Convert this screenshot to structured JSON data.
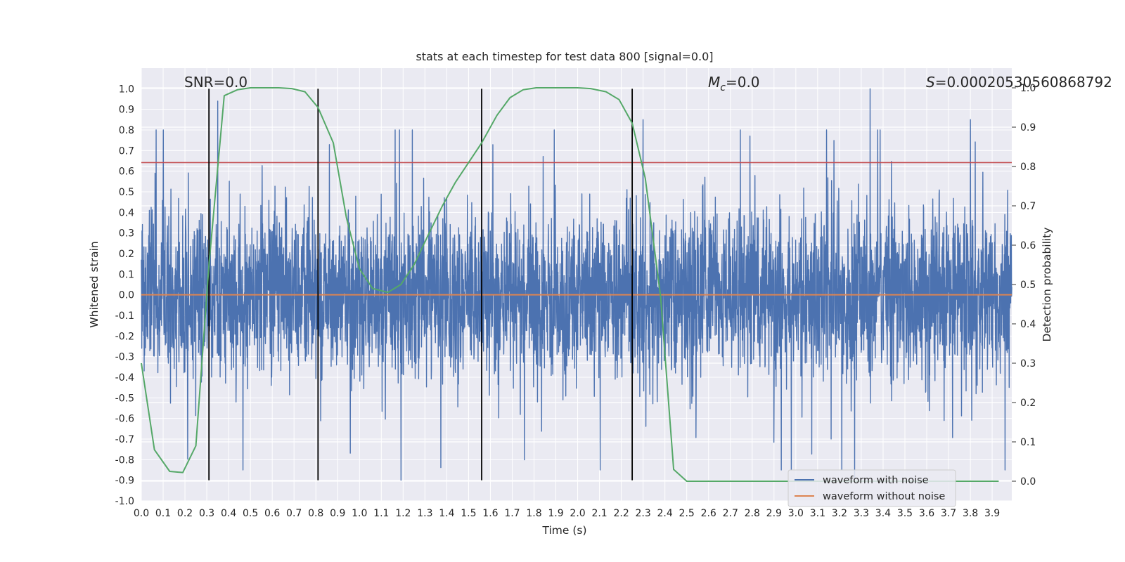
{
  "chart_data": {
    "type": "line",
    "title": "stats at each timestep for test data 800 [signal=0.0]",
    "xlabel": "Time (s)",
    "ylabel": "Whitened strain",
    "y2label": "Detection probability",
    "xlim": [
      0.0,
      3.99
    ],
    "ylim": [
      -1.0,
      1.1
    ],
    "y2lim": [
      -0.05,
      1.05
    ],
    "x_ticks": [
      "0.0",
      "0.1",
      "0.2",
      "0.3",
      "0.4",
      "0.5",
      "0.6",
      "0.7",
      "0.8",
      "0.9",
      "1.0",
      "1.1",
      "1.2",
      "1.3",
      "1.4",
      "1.5",
      "1.6",
      "1.7",
      "1.8",
      "1.9",
      "2.0",
      "2.1",
      "2.2",
      "2.3",
      "2.4",
      "2.5",
      "2.6",
      "2.7",
      "2.8",
      "2.9",
      "3.0",
      "3.1",
      "3.2",
      "3.3",
      "3.4",
      "3.5",
      "3.6",
      "3.7",
      "3.8",
      "3.9"
    ],
    "y_ticks": [
      "1.0",
      "0.9",
      "0.8",
      "0.7",
      "0.6",
      "0.5",
      "0.4",
      "0.3",
      "0.2",
      "0.1",
      "0.0",
      "-0.1",
      "-0.2",
      "-0.3",
      "-0.4",
      "-0.5",
      "-0.6",
      "-0.7",
      "-0.8",
      "-0.9",
      "-1.0"
    ],
    "y2_ticks": [
      "1.0",
      "0.9",
      "0.8",
      "0.7",
      "0.6",
      "0.5",
      "0.4",
      "0.3",
      "0.2",
      "0.1",
      "0.0"
    ],
    "grid": true,
    "legend": {
      "placement": "lower-right",
      "entries": [
        {
          "label": "waveform with noise",
          "color": "#4c72b0"
        },
        {
          "label": "waveform without noise",
          "color": "#dd8452"
        }
      ]
    },
    "annotations": {
      "snr": "SNR=0.0",
      "mc_symbol": "M",
      "mc_sub": "c",
      "mc_value": "=0.0",
      "s_symbol": "S",
      "s_value": "=0.00020530560868792"
    },
    "noise_series": {
      "name": "waveform with noise",
      "color": "#4c72b0",
      "t_start": 0.0,
      "t_end": 3.99,
      "amplitude_typical": 0.35,
      "amplitude_peak": 1.0,
      "notable_peaks": [
        {
          "t": 0.35,
          "y": 0.94
        },
        {
          "t": 1.19,
          "y": -0.9
        },
        {
          "t": 2.3,
          "y": 0.85
        },
        {
          "t": 3.27,
          "y": -0.89
        },
        {
          "t": 3.34,
          "y": 1.0
        },
        {
          "t": 3.8,
          "y": 0.85
        }
      ]
    },
    "clean_series": {
      "name": "waveform without noise",
      "color": "#dd8452",
      "value": 0.0
    },
    "detection_series": {
      "name": "Detection probability",
      "color": "#55a868",
      "x": [
        0.0,
        0.06,
        0.13,
        0.19,
        0.25,
        0.31,
        0.38,
        0.44,
        0.5,
        0.56,
        0.63,
        0.69,
        0.75,
        0.81,
        0.88,
        0.94,
        1.0,
        1.06,
        1.13,
        1.19,
        1.25,
        1.31,
        1.38,
        1.44,
        1.5,
        1.56,
        1.63,
        1.69,
        1.75,
        1.81,
        1.88,
        1.94,
        2.0,
        2.06,
        2.13,
        2.19,
        2.25,
        2.31,
        2.38,
        2.44,
        2.5,
        2.56,
        2.63,
        3.0,
        3.5,
        3.93
      ],
      "y": [
        0.3,
        0.08,
        0.025,
        0.022,
        0.09,
        0.55,
        0.98,
        0.995,
        1.0,
        1.0,
        1.0,
        0.998,
        0.99,
        0.95,
        0.86,
        0.67,
        0.54,
        0.49,
        0.48,
        0.5,
        0.55,
        0.62,
        0.7,
        0.76,
        0.81,
        0.86,
        0.93,
        0.975,
        0.995,
        1.0,
        1.0,
        1.0,
        1.0,
        0.998,
        0.99,
        0.97,
        0.91,
        0.77,
        0.47,
        0.03,
        0.0,
        0.0,
        0.0,
        0.0,
        0.0,
        0.0
      ]
    },
    "threshold": {
      "color": "#c44e52",
      "value": 0.81
    },
    "vertical_markers": {
      "color": "#000000",
      "x": [
        0.31,
        0.81,
        1.56,
        2.25
      ],
      "ymin": -0.9,
      "ymax": 1.0
    }
  }
}
